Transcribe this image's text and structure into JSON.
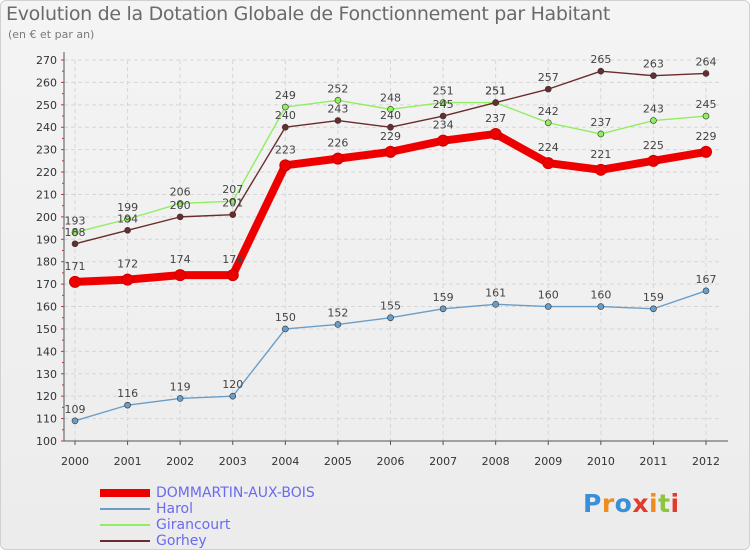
{
  "title": "Evolution de la Dotation Globale de Fonctionnement par Habitant",
  "subtitle": "(en € et par an)",
  "logo": {
    "letters": [
      "P",
      "r",
      "o",
      "x",
      "i",
      "t",
      "i"
    ],
    "colors": [
      "#3a8fd8",
      "#f08c1e",
      "#3a8fd8",
      "#e23b2e",
      "#f08c1e",
      "#8cc63f",
      "#e23b2e"
    ]
  },
  "chart_data": {
    "type": "line",
    "title": "Evolution de la Dotation Globale de Fonctionnement par Habitant",
    "subtitle": "(en € et par an)",
    "xlabel": "",
    "ylabel": "",
    "ylim": [
      100,
      270
    ],
    "yticks": [
      100,
      110,
      120,
      130,
      140,
      150,
      160,
      170,
      180,
      190,
      200,
      210,
      220,
      230,
      240,
      250,
      260,
      270
    ],
    "categories": [
      "2000",
      "2001",
      "2002",
      "2003",
      "2004",
      "2005",
      "2006",
      "2007",
      "2008",
      "2009",
      "2010",
      "2011",
      "2012"
    ],
    "grid": true,
    "legend_position": "bottom-left",
    "series": [
      {
        "name": "DOMMARTIN-AUX-BOIS",
        "color": "#ee0000",
        "values": [
          171,
          172,
          174,
          174,
          223,
          226,
          229,
          234,
          237,
          224,
          221,
          225,
          229
        ]
      },
      {
        "name": "Harol",
        "color": "#6a9ec8",
        "values": [
          109,
          116,
          119,
          120,
          150,
          152,
          155,
          159,
          161,
          160,
          160,
          159,
          167
        ]
      },
      {
        "name": "Girancourt",
        "color": "#90ee60",
        "values": [
          193,
          199,
          206,
          207,
          249,
          252,
          248,
          251,
          251,
          242,
          237,
          243,
          245
        ]
      },
      {
        "name": "Gorhey",
        "color": "#6a2c2c",
        "values": [
          188,
          194,
          200,
          201,
          240,
          243,
          240,
          245,
          251,
          257,
          265,
          263,
          264
        ]
      }
    ]
  }
}
